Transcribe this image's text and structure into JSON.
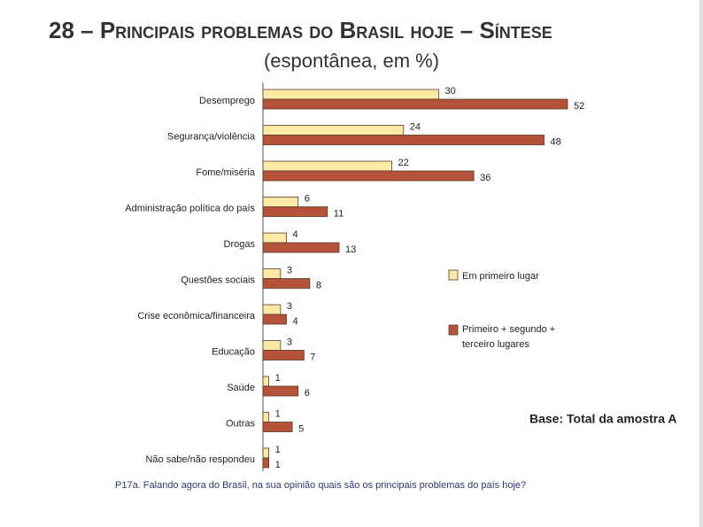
{
  "chart_data": {
    "type": "bar",
    "orientation": "horizontal",
    "title": "28 – Principais problemas do Brasil hoje – Síntese",
    "subtitle": "(espontânea, em %)",
    "categories": [
      "Desemprego",
      "Segurança/violência",
      "Fome/miséria",
      "Administração política do país",
      "Drogas",
      "Questões sociais",
      "Crise econômica/financeira",
      "Educação",
      "Saúde",
      "Outras",
      "Não sabe/não respondeu"
    ],
    "series": [
      {
        "name": "Em primeiro lugar",
        "color": "#fde9a6",
        "values": [
          30,
          24,
          22,
          6,
          4,
          3,
          3,
          3,
          1,
          1,
          1
        ]
      },
      {
        "name": "Primeiro + segundo + terceiro lugares",
        "color": "#b4533a",
        "values": [
          52,
          48,
          36,
          11,
          13,
          8,
          4,
          7,
          6,
          5,
          1
        ]
      }
    ],
    "legend": "right",
    "base_note": "Base: Total da amostra A",
    "footnote": "P17a. Falando agora do Brasil, na sua opinião quais são os principais problemas do país hoje?"
  }
}
